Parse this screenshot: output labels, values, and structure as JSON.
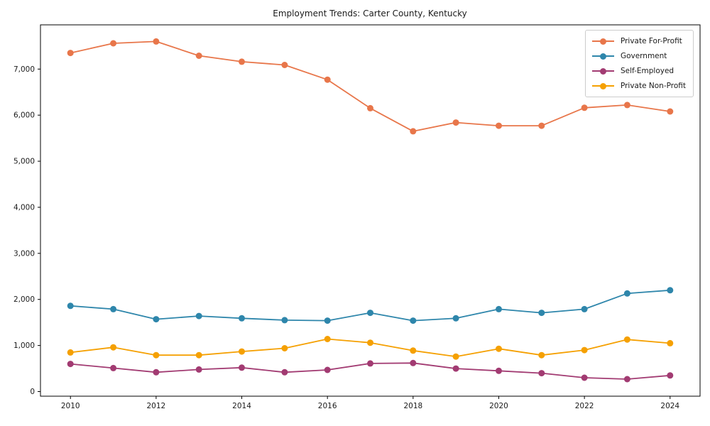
{
  "chart_data": {
    "type": "line",
    "title": "Employment Trends: Carter County, Kentucky",
    "xlabel": "",
    "ylabel": "",
    "grid": false,
    "marker": "circle",
    "legend_position": "upper-right",
    "background_color": "#ffffff",
    "spine_color": "#000000",
    "text_color": "#1a1a1a",
    "x": [
      2010,
      2011,
      2012,
      2013,
      2014,
      2015,
      2016,
      2017,
      2018,
      2019,
      2020,
      2021,
      2022,
      2023,
      2024
    ],
    "xlim": [
      2009.3,
      2024.7
    ],
    "ylim": [
      -100,
      7960
    ],
    "xticks": {
      "values": [
        2010,
        2012,
        2014,
        2016,
        2018,
        2020,
        2022,
        2024
      ],
      "labels": [
        "2010",
        "2012",
        "2014",
        "2016",
        "2018",
        "2020",
        "2022",
        "2024"
      ]
    },
    "yticks": {
      "values": [
        0,
        1000,
        2000,
        3000,
        4000,
        5000,
        6000,
        7000
      ],
      "labels": [
        "0",
        "1,000",
        "2,000",
        "3,000",
        "4,000",
        "5,000",
        "6,000",
        "7,000"
      ]
    },
    "series": [
      {
        "name": "Private For-Profit",
        "color": "#E8764A",
        "values": [
          7350,
          7560,
          7600,
          7290,
          7160,
          7090,
          6770,
          6150,
          5650,
          5840,
          5770,
          5770,
          6160,
          6220,
          6080
        ]
      },
      {
        "name": "Government",
        "color": "#2E86AB",
        "values": [
          1860,
          1790,
          1570,
          1640,
          1590,
          1550,
          1540,
          1710,
          1540,
          1590,
          1790,
          1710,
          1790,
          2130,
          2200
        ]
      },
      {
        "name": "Self-Employed",
        "color": "#A23B72",
        "values": [
          600,
          510,
          420,
          480,
          520,
          420,
          470,
          610,
          620,
          500,
          450,
          400,
          300,
          270,
          350
        ]
      },
      {
        "name": "Private Non-Profit",
        "color": "#F5A002",
        "values": [
          850,
          960,
          790,
          790,
          870,
          940,
          1140,
          1060,
          890,
          760,
          930,
          790,
          900,
          1130,
          1050
        ]
      }
    ]
  }
}
